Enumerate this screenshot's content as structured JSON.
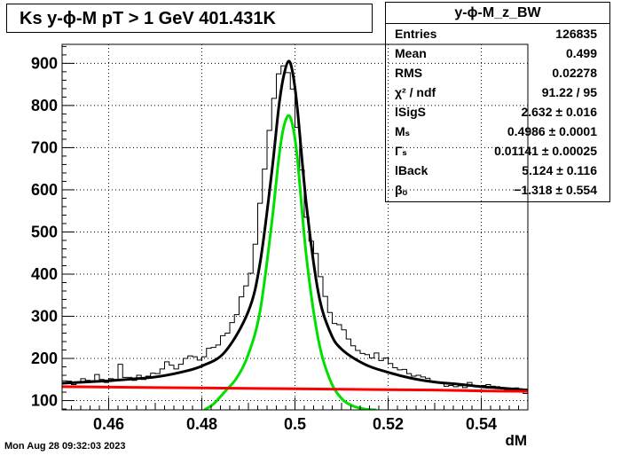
{
  "title": "Ks y-ϕ-M pT > 1 GeV  401.431K",
  "stats": {
    "name": "y-ϕ-M_z_BW",
    "rows": [
      {
        "label": "Entries",
        "value": "126835"
      },
      {
        "label": "Mean",
        "value": "0.499"
      },
      {
        "label": "RMS",
        "value": "0.02278"
      },
      {
        "label": "χ² / ndf",
        "value": "91.22 / 95"
      },
      {
        "label": "lSigS",
        "value": "2.632 ± 0.016"
      },
      {
        "label": "Mₛ",
        "value": "0.4986 ± 0.0001"
      },
      {
        "label": "Γₛ",
        "value": "0.01141 ± 0.00025"
      },
      {
        "label": "lBack",
        "value": "5.124 ± 0.116"
      },
      {
        "label": "βₒ",
        "value": "−1.318 ± 0.554"
      }
    ]
  },
  "footer": "Mon Aug 28 09:32:03 2023",
  "chart_data": {
    "type": "line",
    "xlabel": "dM",
    "ylabel": "",
    "xlim": [
      0.45,
      0.55
    ],
    "ylim": [
      78,
      945
    ],
    "x_ticks": [
      0.46,
      0.48,
      0.5,
      0.52,
      0.54
    ],
    "x_tick_labels": [
      "0.46",
      "0.48",
      "0.5",
      "0.52",
      "0.54"
    ],
    "y_ticks": [
      100,
      200,
      300,
      400,
      500,
      600,
      700,
      800,
      900
    ],
    "y_tick_labels": [
      "100",
      "200",
      "300",
      "400",
      "500",
      "600",
      "700",
      "800",
      "900"
    ],
    "grid": true,
    "fit": {
      "amplitude": 775,
      "mean": 0.4986,
      "width": 0.01141,
      "background_at_low_edge": 133,
      "background_at_high_edge": 122
    },
    "series": [
      {
        "name": "",
        "style": "histogram",
        "color": "#000000",
        "x": [
          0.4505,
          0.4515,
          0.4525,
          0.4535,
          0.4545,
          0.4555,
          0.4565,
          0.4575,
          0.4585,
          0.4595,
          0.4605,
          0.4615,
          0.4625,
          0.4635,
          0.4645,
          0.4655,
          0.4665,
          0.4675,
          0.4685,
          0.4695,
          0.4705,
          0.4715,
          0.4725,
          0.4735,
          0.4745,
          0.4755,
          0.4765,
          0.4775,
          0.4785,
          0.4795,
          0.4805,
          0.4815,
          0.4825,
          0.4835,
          0.4845,
          0.4855,
          0.4865,
          0.4875,
          0.4885,
          0.4895,
          0.4905,
          0.4915,
          0.4925,
          0.4935,
          0.4945,
          0.4955,
          0.4965,
          0.4975,
          0.4985,
          0.4995,
          0.5005,
          0.5015,
          0.5025,
          0.5035,
          0.5045,
          0.5055,
          0.5065,
          0.5075,
          0.5085,
          0.5095,
          0.5105,
          0.5115,
          0.5125,
          0.5135,
          0.5145,
          0.5155,
          0.5165,
          0.5175,
          0.5185,
          0.5195,
          0.5205,
          0.5215,
          0.5225,
          0.5235,
          0.5245,
          0.5255,
          0.5265,
          0.5275,
          0.5285,
          0.5295,
          0.5305,
          0.5315,
          0.5325,
          0.5335,
          0.5345,
          0.5355,
          0.5365,
          0.5375,
          0.5385,
          0.5395,
          0.5405,
          0.5415,
          0.5425,
          0.5435,
          0.5445,
          0.5455,
          0.5465,
          0.5475,
          0.5485,
          0.5495
        ],
        "y": [
          147,
          146,
          138,
          143,
          152,
          148,
          147,
          162,
          150,
          143,
          152,
          150,
          186,
          155,
          155,
          148,
          160,
          150,
          158,
          165,
          164,
          175,
          192,
          184,
          175,
          186,
          200,
          206,
          204,
          196,
          204,
          224,
          226,
          232,
          254,
          260,
          285,
          304,
          346,
          372,
          402,
          471,
          568,
          649,
          741,
          817,
          875,
          894,
          878,
          839,
          748,
          647,
          535,
          478,
          449,
          394,
          347,
          309,
          283,
          280,
          268,
          246,
          230,
          219,
          212,
          209,
          201,
          213,
          195,
          201,
          188,
          178,
          173,
          174,
          164,
          158,
          160,
          156,
          153,
          146,
          143,
          142,
          134,
          136,
          133,
          135,
          131,
          143,
          136,
          134,
          136,
          138,
          134,
          133,
          131,
          126,
          124,
          130,
          127,
          117
        ]
      },
      {
        "name": "",
        "style": "line",
        "color": "#000000",
        "x": [
          0.45,
          0.455,
          0.46,
          0.465,
          0.47,
          0.475,
          0.48,
          0.485,
          0.49,
          0.4925,
          0.495,
          0.4965,
          0.4975,
          0.4986,
          0.4995,
          0.5005,
          0.5025,
          0.505,
          0.5075,
          0.51,
          0.515,
          0.52,
          0.525,
          0.53,
          0.535,
          0.54,
          0.545,
          0.55
        ],
        "y": [
          141,
          144,
          147,
          151,
          156,
          166,
          182,
          216,
          312,
          426,
          640,
          794,
          866,
          905,
          878,
          794,
          560,
          357,
          264,
          222,
          186,
          167,
          153,
          144,
          139,
          133,
          129,
          125
        ]
      },
      {
        "name": "",
        "style": "line",
        "color": "#00e000",
        "x": [
          0.4805,
          0.4825,
          0.485,
          0.4875,
          0.49,
          0.4925,
          0.495,
          0.4965,
          0.4975,
          0.4986,
          0.4995,
          0.5005,
          0.5025,
          0.505,
          0.5075,
          0.51,
          0.5125,
          0.515,
          0.5175
        ],
        "y": [
          78,
          92,
          122,
          154,
          210,
          312,
          520,
          672,
          745,
          776,
          752,
          676,
          437,
          246,
          150,
          105,
          87,
          80,
          78
        ]
      },
      {
        "name": "",
        "style": "line",
        "color": "#ff0000",
        "x": [
          0.45,
          0.46,
          0.47,
          0.48,
          0.49,
          0.5,
          0.51,
          0.52,
          0.53,
          0.54,
          0.55
        ],
        "y": [
          133,
          132,
          131,
          130,
          129,
          128,
          127,
          126,
          125,
          123,
          122
        ]
      }
    ]
  }
}
